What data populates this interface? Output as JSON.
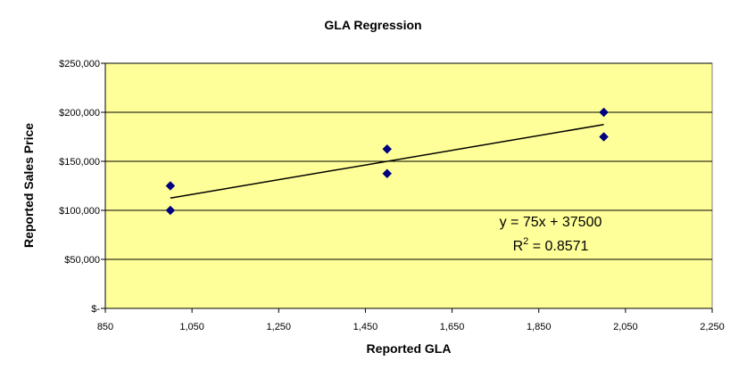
{
  "chart_data": {
    "type": "scatter",
    "title": "GLA Regression",
    "xlabel": "Reported GLA",
    "ylabel": "Reported Sales Price",
    "xlim": [
      850,
      2250
    ],
    "ylim": [
      0,
      250000
    ],
    "x_ticks": [
      850,
      1050,
      1250,
      1450,
      1650,
      1850,
      2050,
      2250
    ],
    "x_tick_labels": [
      "850",
      "1,050",
      "1,250",
      "1,450",
      "1,650",
      "1,850",
      "2,050",
      "2,250"
    ],
    "y_ticks": [
      0,
      50000,
      100000,
      150000,
      200000,
      250000
    ],
    "y_tick_labels": [
      "$-",
      "$50,000",
      "$100,000",
      "$150,000",
      "$200,000",
      "$250,000"
    ],
    "grid": "horizontal",
    "plot_background": "#FFFF99",
    "marker_color": "#000080",
    "series": [
      {
        "x": [
          1000,
          1000,
          1500,
          1500,
          2000,
          2000
        ],
        "y": [
          125000,
          100000,
          162500,
          137500,
          200000,
          175000
        ]
      }
    ],
    "trendline": {
      "type": "linear",
      "slope": 75,
      "intercept": 37500,
      "x_range": [
        1000,
        2000
      ],
      "equation_label": "y = 75x + 37500",
      "r2_prefix": "R",
      "r2_sup": "2",
      "r2_value": " = 0.8571"
    }
  }
}
